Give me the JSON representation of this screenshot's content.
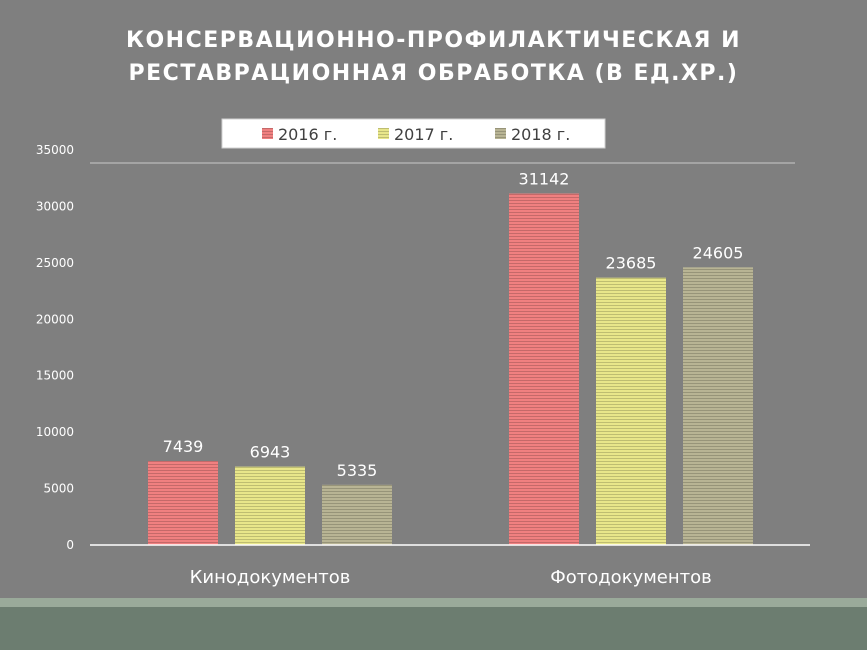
{
  "title_lines": [
    "КОНСЕРВАЦИОННО-ПРОФИЛАКТИЧЕСКАЯ И",
    "РЕСТАВРАЦИОННАЯ ОБРАБОТКА (В ЕД.ХР.)"
  ],
  "chart_data": {
    "type": "bar",
    "title": "КОНСЕРВАЦИОННО-ПРОФИЛАКТИЧЕСКАЯ И РЕСТАВРАЦИОННАЯ ОБРАБОТКА (В ЕД.ХР.)",
    "categories": [
      "Кинодокументов",
      "Фотодокументов"
    ],
    "series": [
      {
        "name": "2016 г.",
        "values": [
          7439,
          31142
        ],
        "color": "#f08080"
      },
      {
        "name": "2017 г.",
        "values": [
          6943,
          23685
        ],
        "color": "#e8e68a"
      },
      {
        "name": "2018 г.",
        "values": [
          5335,
          24605
        ],
        "color": "#b8b494"
      }
    ],
    "ylim": [
      0,
      35000
    ],
    "yticks": [
      0,
      5000,
      10000,
      15000,
      20000,
      25000,
      30000,
      35000
    ],
    "legend_position": "top",
    "grid": false,
    "data_labels": true
  }
}
